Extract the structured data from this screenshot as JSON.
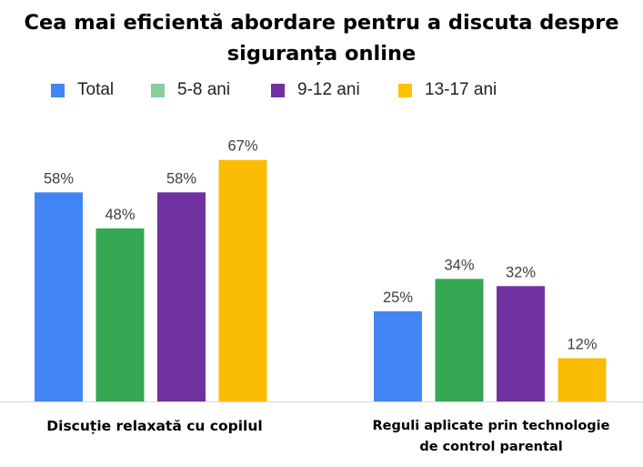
{
  "chart_data": {
    "type": "bar",
    "title_lines": [
      "Cea mai eficientă abordare pentru a discuta despre",
      "siguranța online"
    ],
    "categories": [
      "Discuție relaxată cu copilul",
      "Reguli aplicate prin technologie de control parental"
    ],
    "category_label_lines": [
      [
        "Discuție relaxată cu copilul"
      ],
      [
        "Reguli aplicate prin technologie",
        "de control parental"
      ]
    ],
    "series": [
      {
        "name": "Total",
        "color": "#4285F4",
        "values": [
          58,
          25
        ],
        "labels": [
          "58%",
          "25%"
        ]
      },
      {
        "name": "5-8 ani",
        "color": "#34A853",
        "values": [
          48,
          34
        ],
        "labels": [
          "48%",
          "34%"
        ]
      },
      {
        "name": "9-12 ani",
        "color": "#7030A0",
        "values": [
          58,
          32
        ],
        "labels": [
          "58%",
          "32%"
        ]
      },
      {
        "name": "13-17 ani",
        "color": "#FBBC04",
        "values": [
          67,
          12
        ],
        "labels": [
          "67%",
          "12%"
        ]
      }
    ],
    "legend_swatch_colors": [
      "#4285F4",
      "#87CE9B",
      "#7030A0",
      "#FFC000"
    ],
    "ylim": [
      0,
      100
    ],
    "legend_position": "top",
    "grid": false,
    "xlabel": "",
    "ylabel": ""
  }
}
